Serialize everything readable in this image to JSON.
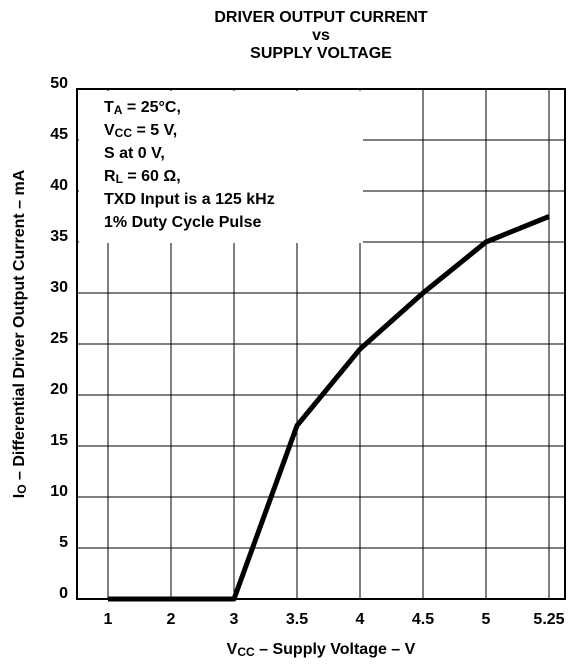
{
  "chart_data": {
    "type": "line",
    "title": [
      "DRIVER OUTPUT CURRENT",
      "vs",
      "SUPPLY VOLTAGE"
    ],
    "x_label": [
      "V",
      "CC",
      " – Supply Voltage – V"
    ],
    "y_label": [
      "I",
      "O",
      " – Differential Driver Output Current – mA"
    ],
    "annotation": [
      [
        "T",
        "A",
        " = 25°C,"
      ],
      [
        "V",
        "CC",
        " = 5 V,"
      ],
      [
        "S at 0 V,"
      ],
      [
        "R",
        "L",
        " = 60 Ω,"
      ],
      [
        "TXD Input is a 125 kHz"
      ],
      [
        "1% Duty Cycle Pulse"
      ]
    ],
    "categories": [
      "1",
      "2",
      "3",
      "3.5",
      "4",
      "4.5",
      "5",
      "5.25"
    ],
    "values": [
      0,
      0,
      0,
      17,
      24.5,
      30,
      35,
      37.5
    ],
    "color": "#000000",
    "ylim": [
      0,
      50
    ],
    "yticks": [
      0,
      5,
      10,
      15,
      20,
      25,
      30,
      35,
      40,
      45,
      50
    ],
    "grid": true
  }
}
